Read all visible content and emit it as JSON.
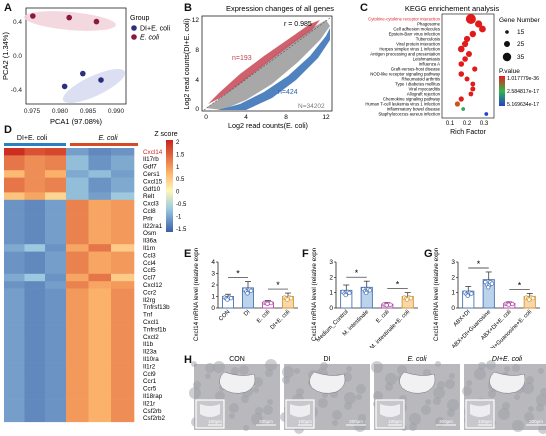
{
  "panels": {
    "A": "A",
    "B": "B",
    "C": "C",
    "D": "D",
    "E": "E",
    "F": "F",
    "G": "G",
    "H": "H"
  },
  "colors": {
    "di_ecoli": "#2b2f80",
    "ecoli": "#8b1a3a",
    "di_fill": "#bcd3ec",
    "ec_fill": "#f3b9a6",
    "hm_high": "#d7261e",
    "hm_mid": "#fff6b0",
    "hm_low": "#3a66ad"
  },
  "panelA": {
    "legend_title": "Group",
    "legend_items": [
      "DI+E. coli",
      "E. coli"
    ],
    "xlabel": "PCA1 (97.08%)",
    "ylabel": "PCA2 (1.34%)",
    "xticks": [
      "0.975",
      "0.980",
      "0.985",
      "0.990"
    ],
    "yticks": [
      "0.4",
      "0.0",
      "-0.4"
    ]
  },
  "panelB": {
    "title": "Expression changes of all genes",
    "r": "r = 0.985",
    "n_up": "n=193",
    "n_down": "n=424",
    "n_total": "N=34202",
    "xlabel": "Log2 read counts(E. coli)",
    "ylabel": "Log2 read counts(DI+E. coli)",
    "xticks": [
      "0",
      "4",
      "8",
      "12"
    ],
    "yticks": [
      "0",
      "4",
      "8",
      "12"
    ]
  },
  "panelC": {
    "title": "KEGG enrichement analysis",
    "xlabel": "Rich Factor",
    "xticks": [
      "0.1",
      "0.2",
      "0.3"
    ],
    "pathways": [
      "Cytokine-cytokine receptor interaction",
      "Phagosome",
      "Cell adhesion molecules",
      "Epstein-Barr virus infection",
      "Tuberculosis",
      "Viral protein interaction",
      "Herpes simplex virus 1 infection",
      "Antigen processing and presentation",
      "Leishmaniasis",
      "Influenza A",
      "Graft-versus-host disease",
      "NOD-like receptor signaling pathway",
      "Rheumatoid arthritis",
      "Type I diabetes mellitus",
      "Viral myocarditis",
      "Allograft rejection",
      "Chemokine signaling pathway",
      "Human T-cell leukemia virus 1 infection",
      "Inflammatory bowel disease",
      "Staphylococcus aureus infection"
    ],
    "size_legend_title": "Gene Number",
    "size_legend": [
      "15",
      "25",
      "35"
    ],
    "pvalue_title": "P.value",
    "pvalue_labels": [
      "1.017779e-36",
      "2.584817e-17",
      "5.169634e-17"
    ]
  },
  "panelD": {
    "groups": [
      "DI+E. coli",
      "E. coli"
    ],
    "zscore_title": "Z score",
    "zscore_ticks": [
      "2",
      "1.5",
      "1",
      "0.5",
      "0",
      "-0.5",
      "-1",
      "-1.5"
    ],
    "genes": [
      "Cxcl14",
      "Il17rb",
      "Gdf7",
      "Cers1",
      "Cxcl15",
      "Gdf10",
      "Relt",
      "Cxcl3",
      "Ccl8",
      "Prlr",
      "Il22ra1",
      "Osm",
      "Il36a",
      "Il1rn",
      "Ccl3",
      "Ccl4",
      "Ccl5",
      "Ccl7",
      "Cxcl12",
      "Ccr2",
      "Il2rg",
      "Tnfrsf13b",
      "Tnf",
      "Cxcl1",
      "Tnfrsf1b",
      "Cxcl2",
      "Il1b",
      "Il23a",
      "Il10ra",
      "Il1r2",
      "Ccl9",
      "Ccr1",
      "Ccr5",
      "Il18rap",
      "Il21r",
      "Csf2rb",
      "Csf2rb2"
    ]
  },
  "panelE": {
    "ylabel": "Cxcl14 mRNA level (relative expression)",
    "yticks": [
      "0",
      "1",
      "2",
      "3",
      "4"
    ],
    "categories": [
      "CON",
      "DI",
      "E. coli",
      "DI+E. coli"
    ],
    "star": "*"
  },
  "panelF": {
    "ylabel": "Cxcl14 mRNA level (relative expression)",
    "yticks": [
      "0",
      "1",
      "2",
      "3"
    ],
    "categories": [
      "Medium_Control",
      "M. intestinale",
      "E. coli",
      "M. intestinale+E. coli"
    ],
    "star": "*"
  },
  "panelG": {
    "ylabel": "Cxcl14 mRNA level (relative expression)",
    "yticks": [
      "0",
      "1",
      "2",
      "3"
    ],
    "categories": [
      "ABX+DI",
      "ABX+DI+Guanosine",
      "ABX+DI+E. coli",
      "ABX+DI+Guanosine+E. coli"
    ],
    "star": "*"
  },
  "panelH": {
    "groups": [
      "CON",
      "DI",
      "E. coli",
      "DI+E. coli"
    ],
    "scale_inset": "100μm",
    "scale_main": "200μm"
  },
  "chart_data": [
    {
      "type": "scatter",
      "panel": "A",
      "title": "",
      "xlabel": "PCA1 (97.08%)",
      "ylabel": "PCA2 (1.34%)",
      "xlim": [
        0.973,
        0.995
      ],
      "ylim": [
        -0.6,
        0.6
      ],
      "series": [
        {
          "name": "DI+E. coli",
          "points": [
            [
              0.9815,
              -0.38
            ],
            [
              0.9855,
              -0.22
            ],
            [
              0.9895,
              -0.3
            ]
          ]
        },
        {
          "name": "E. coli",
          "points": [
            [
              0.9745,
              0.5
            ],
            [
              0.9825,
              0.48
            ],
            [
              0.9885,
              0.43
            ]
          ]
        }
      ]
    },
    {
      "type": "bar",
      "panel": "E",
      "title": "",
      "xlabel": "",
      "ylabel": "Cxcl14 mRNA level (relative expression)",
      "ylim": [
        0,
        4
      ],
      "categories": [
        "CON",
        "DI",
        "E. coli",
        "DI+E. coli"
      ],
      "values": [
        1.0,
        1.75,
        0.5,
        1.0
      ],
      "errors": [
        0.2,
        0.55,
        0.15,
        0.3
      ]
    },
    {
      "type": "bar",
      "panel": "F",
      "title": "",
      "xlabel": "",
      "ylabel": "Cxcl14 mRNA level (relative expression)",
      "ylim": [
        0,
        3
      ],
      "categories": [
        "Medium_Control",
        "M. intestinale",
        "E. coli",
        "M. intestinale+E. coli"
      ],
      "values": [
        1.15,
        1.35,
        0.25,
        0.75
      ],
      "errors": [
        0.35,
        0.4,
        0.1,
        0.25
      ]
    },
    {
      "type": "bar",
      "panel": "G",
      "title": "",
      "xlabel": "",
      "ylabel": "Cxcl14 mRNA level (relative expression)",
      "ylim": [
        0,
        3
      ],
      "categories": [
        "ABX+DI",
        "ABX+DI+Guanosine",
        "ABX+DI+E. coli",
        "ABX+DI+Guanosine+E. coli"
      ],
      "values": [
        1.1,
        1.85,
        0.3,
        0.75
      ],
      "errors": [
        0.3,
        0.5,
        0.1,
        0.2
      ]
    }
  ]
}
